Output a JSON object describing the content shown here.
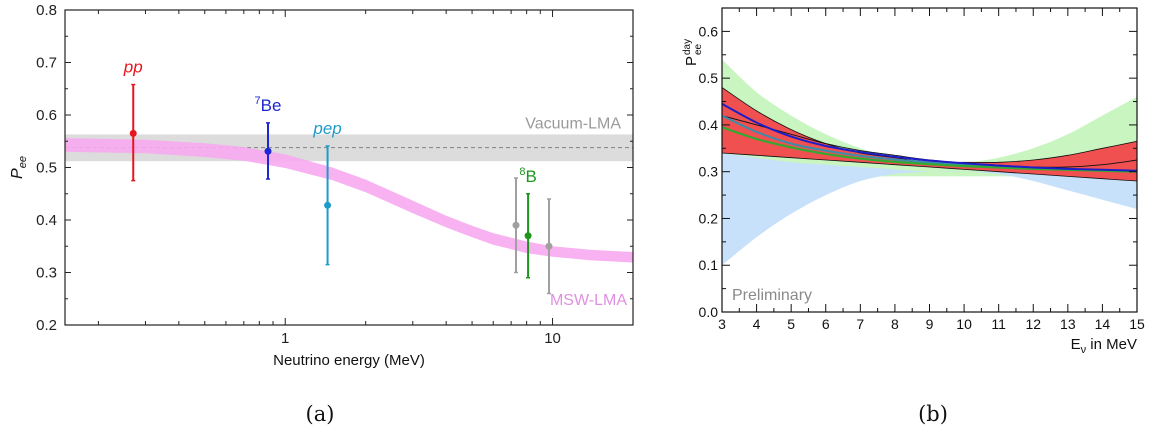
{
  "chart_data": [
    {
      "type": "scatter",
      "panel_caption": "(a)",
      "xlabel": "Neutrino energy (MeV)",
      "ylabel": "P",
      "ylabel_sub": "ee",
      "xscale": "log",
      "xlim": [
        0.15,
        20
      ],
      "ylim": [
        0.2,
        0.8
      ],
      "yticks": [
        "0.2",
        "0.3",
        "0.4",
        "0.5",
        "0.6",
        "0.7",
        "0.8"
      ],
      "xticks": [
        "1",
        "10"
      ],
      "colors": {
        "pp": "#e8141e",
        "be7": "#1e28d2",
        "pep": "#1e9bc8",
        "b8": "#1e961e",
        "grey": "#a0a0a0",
        "msw": "#f7a8f0",
        "vac": "#dcdcdc"
      },
      "vacuum_band": {
        "label": "Vacuum-LMA",
        "center": 0.538,
        "low": 0.512,
        "high": 0.563
      },
      "msw_band": {
        "label": "MSW-LMA",
        "x": [
          0.15,
          0.3,
          0.5,
          0.7,
          1.0,
          1.5,
          2.0,
          3.0,
          4.0,
          5.0,
          6.0,
          8.0,
          10.0,
          14.0,
          20.0
        ],
        "center": [
          0.543,
          0.54,
          0.533,
          0.526,
          0.512,
          0.488,
          0.465,
          0.425,
          0.397,
          0.378,
          0.364,
          0.348,
          0.34,
          0.333,
          0.329
        ],
        "halfwidth": [
          0.013,
          0.013,
          0.013,
          0.013,
          0.013,
          0.012,
          0.012,
          0.012,
          0.011,
          0.011,
          0.011,
          0.011,
          0.01,
          0.01,
          0.01
        ]
      },
      "points": [
        {
          "name": "pp",
          "label": "pp",
          "italic": true,
          "x": 0.27,
          "y": 0.565,
          "yerr_low": 0.475,
          "yerr_high": 0.658,
          "color": "#e8141e"
        },
        {
          "name": "be7",
          "label": "Be",
          "sup": "7",
          "x": 0.862,
          "y": 0.531,
          "yerr_low": 0.478,
          "yerr_high": 0.585,
          "color": "#1e28d2"
        },
        {
          "name": "pep",
          "label": "pep",
          "italic": true,
          "x": 1.44,
          "y": 0.428,
          "yerr_low": 0.315,
          "yerr_high": 0.541,
          "color": "#1e9bc8"
        },
        {
          "name": "b8-grey-1",
          "x": 7.3,
          "y": 0.39,
          "yerr_low": 0.3,
          "yerr_high": 0.48,
          "color": "#a0a0a0"
        },
        {
          "name": "b8",
          "label": "B",
          "sup": "8",
          "x": 8.1,
          "y": 0.37,
          "yerr_low": 0.29,
          "yerr_high": 0.45,
          "color": "#1e961e"
        },
        {
          "name": "b8-grey-2",
          "x": 9.7,
          "y": 0.35,
          "yerr_low": 0.26,
          "yerr_high": 0.44,
          "color": "#a0a0a0"
        }
      ]
    },
    {
      "type": "area",
      "panel_caption": "(b)",
      "xlabel": "E",
      "xlabel_sub": "ν",
      "xlabel_suffix": " in MeV",
      "ylabel": "P",
      "ylabel_sup": "day",
      "ylabel_sub": "ee",
      "annotation": "Preliminary",
      "xlim": [
        3,
        15
      ],
      "ylim": [
        0,
        0.65
      ],
      "xticks": [
        "3",
        "4",
        "5",
        "6",
        "7",
        "8",
        "9",
        "10",
        "11",
        "12",
        "13",
        "14",
        "15"
      ],
      "yticks": [
        "0.0",
        "0.1",
        "0.2",
        "0.3",
        "0.4",
        "0.5",
        "0.6"
      ],
      "colors": {
        "green_band": "#c8f5c0",
        "blue_band": "#c8e1fa",
        "red_band": "#f05050",
        "blue_curve": "#1e1ec8",
        "green_curve": "#32aa32",
        "teal_curve": "#3c8caa"
      },
      "x": [
        3,
        4,
        5,
        6,
        7,
        8,
        9,
        10,
        11,
        12,
        13,
        14,
        15
      ],
      "green_band": {
        "high": [
          0.54,
          0.47,
          0.42,
          0.38,
          0.35,
          0.33,
          0.32,
          0.32,
          0.33,
          0.35,
          0.38,
          0.42,
          0.46
        ],
        "low": [
          0.3,
          0.29,
          0.29,
          0.29,
          0.29,
          0.29,
          0.29,
          0.29,
          0.29,
          0.29,
          0.29,
          0.28,
          0.28
        ]
      },
      "blue_band": {
        "high": [
          0.34,
          0.33,
          0.32,
          0.315,
          0.31,
          0.305,
          0.3,
          0.3,
          0.3,
          0.3,
          0.3,
          0.3,
          0.3
        ],
        "low": [
          0.1,
          0.16,
          0.21,
          0.25,
          0.28,
          0.295,
          0.3,
          0.3,
          0.295,
          0.28,
          0.26,
          0.24,
          0.22
        ]
      },
      "red_band": {
        "high": [
          0.48,
          0.43,
          0.39,
          0.36,
          0.34,
          0.33,
          0.32,
          0.32,
          0.32,
          0.325,
          0.335,
          0.35,
          0.365
        ],
        "low": [
          0.34,
          0.335,
          0.33,
          0.325,
          0.32,
          0.315,
          0.31,
          0.305,
          0.3,
          0.295,
          0.29,
          0.285,
          0.28
        ]
      },
      "black_line": [
        0.42,
        0.4,
        0.38,
        0.36,
        0.345,
        0.335,
        0.325,
        0.318,
        0.314,
        0.31,
        0.31,
        0.315,
        0.325
      ],
      "blue_curve": [
        0.445,
        0.405,
        0.375,
        0.355,
        0.342,
        0.332,
        0.324,
        0.318,
        0.313,
        0.309,
        0.306,
        0.304,
        0.302
      ],
      "teal_curve": [
        0.42,
        0.385,
        0.36,
        0.345,
        0.334,
        0.326,
        0.32,
        0.315,
        0.311,
        0.308,
        0.305,
        0.303,
        0.301
      ],
      "green_curve": [
        0.395,
        0.37,
        0.352,
        0.338,
        0.328,
        0.321,
        0.316,
        0.312,
        0.309,
        0.306,
        0.304,
        0.302,
        0.3
      ]
    }
  ]
}
